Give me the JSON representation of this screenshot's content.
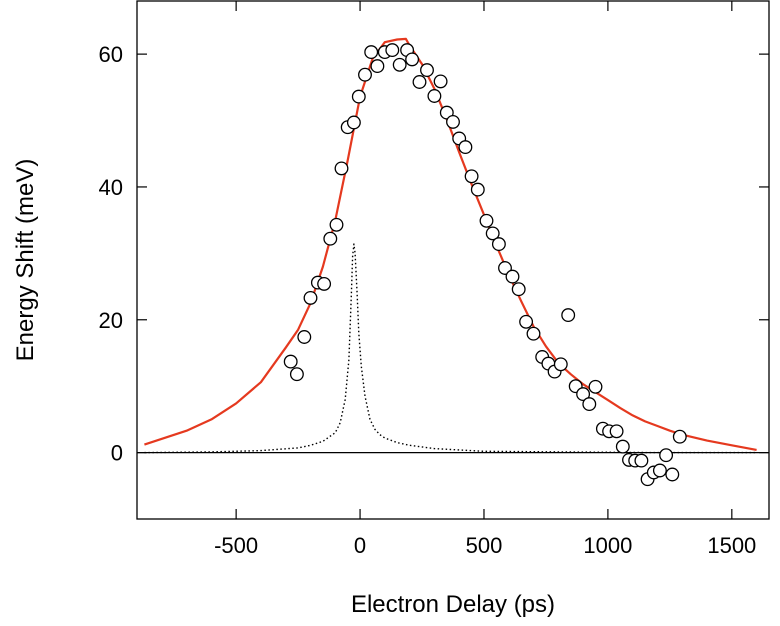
{
  "chart_data": {
    "type": "scatter",
    "title": "",
    "xlabel": "Electron Delay (ps)",
    "ylabel": "Energy Shift (meV)",
    "xlim": [
      -900,
      1650
    ],
    "ylim": [
      -10,
      68
    ],
    "xticks": [
      -500,
      0,
      500,
      1000,
      1500
    ],
    "yticks": [
      0,
      20,
      40,
      60
    ],
    "grid": false,
    "zero_line": true,
    "series": [
      {
        "kind": "markers",
        "marker": "open-circle",
        "color": "#000000",
        "points": [
          [
            -280,
            13.7
          ],
          [
            -255,
            11.8
          ],
          [
            -225,
            17.4
          ],
          [
            -200,
            23.3
          ],
          [
            -170,
            25.6
          ],
          [
            -145,
            25.4
          ],
          [
            -120,
            32.2
          ],
          [
            -95,
            34.3
          ],
          [
            -75,
            42.8
          ],
          [
            -50,
            49.0
          ],
          [
            -25,
            49.7
          ],
          [
            -5,
            53.6
          ],
          [
            20,
            56.9
          ],
          [
            45,
            60.3
          ],
          [
            70,
            58.2
          ],
          [
            100,
            60.3
          ],
          [
            130,
            60.6
          ],
          [
            160,
            58.4
          ],
          [
            190,
            60.6
          ],
          [
            210,
            59.2
          ],
          [
            240,
            55.8
          ],
          [
            270,
            57.6
          ],
          [
            300,
            53.7
          ],
          [
            325,
            55.9
          ],
          [
            350,
            51.2
          ],
          [
            375,
            49.8
          ],
          [
            400,
            47.3
          ],
          [
            425,
            46.0
          ],
          [
            450,
            41.6
          ],
          [
            475,
            39.6
          ],
          [
            510,
            34.9
          ],
          [
            535,
            33.0
          ],
          [
            560,
            31.4
          ],
          [
            585,
            27.8
          ],
          [
            615,
            26.5
          ],
          [
            640,
            24.6
          ],
          [
            670,
            19.7
          ],
          [
            700,
            17.9
          ],
          [
            735,
            14.4
          ],
          [
            760,
            13.4
          ],
          [
            785,
            12.2
          ],
          [
            810,
            13.3
          ],
          [
            840,
            20.7
          ],
          [
            870,
            10.0
          ],
          [
            900,
            8.8
          ],
          [
            925,
            7.3
          ],
          [
            950,
            9.9
          ],
          [
            980,
            3.6
          ],
          [
            1005,
            3.2
          ],
          [
            1035,
            3.2
          ],
          [
            1060,
            0.9
          ],
          [
            1085,
            -1.1
          ],
          [
            1110,
            -1.2
          ],
          [
            1135,
            -1.2
          ],
          [
            1160,
            -4.0
          ],
          [
            1185,
            -3.0
          ],
          [
            1210,
            -2.7
          ],
          [
            1235,
            -0.4
          ],
          [
            1260,
            -3.3
          ],
          [
            1290,
            2.4
          ]
        ]
      },
      {
        "kind": "line",
        "style": "solid",
        "color": "#e5391f",
        "x": [
          -870,
          -700,
          -600,
          -500,
          -400,
          -300,
          -250,
          -200,
          -150,
          -100,
          -50,
          0,
          50,
          100,
          150,
          185,
          200,
          250,
          300,
          350,
          400,
          450,
          500,
          550,
          600,
          650,
          700,
          750,
          800,
          850,
          900,
          950,
          1000,
          1050,
          1100,
          1150,
          1200,
          1250,
          1300,
          1400,
          1500,
          1600
        ],
        "y": [
          1.2,
          3.3,
          5.0,
          7.4,
          10.6,
          15.8,
          18.5,
          22.5,
          28.0,
          35.0,
          44.0,
          53.6,
          59.3,
          61.8,
          62.2,
          62.3,
          61.3,
          58.5,
          54.8,
          50.2,
          45.2,
          40.4,
          35.8,
          31.2,
          26.8,
          22.8,
          19.0,
          16.0,
          13.5,
          11.8,
          10.3,
          9.1,
          7.9,
          6.7,
          5.6,
          4.7,
          4.0,
          3.3,
          2.7,
          1.8,
          1.1,
          0.4
        ]
      },
      {
        "kind": "line",
        "style": "dotted",
        "color": "#000000",
        "x": [
          -870,
          -600,
          -400,
          -250,
          -200,
          -150,
          -100,
          -80,
          -60,
          -45,
          -35,
          -30,
          -25,
          -20,
          -12,
          -5,
          5,
          20,
          40,
          60,
          80,
          100,
          150,
          200,
          300,
          500,
          800,
          1200,
          1600
        ],
        "y": [
          0.0,
          0.1,
          0.3,
          0.7,
          1.1,
          1.7,
          3.0,
          4.5,
          8.0,
          14.0,
          24.0,
          29.5,
          31.4,
          30.0,
          24.0,
          18.0,
          13.0,
          8.5,
          5.0,
          3.5,
          2.7,
          2.2,
          1.5,
          1.1,
          0.6,
          0.2,
          0.1,
          0.0,
          0.0
        ]
      }
    ]
  }
}
